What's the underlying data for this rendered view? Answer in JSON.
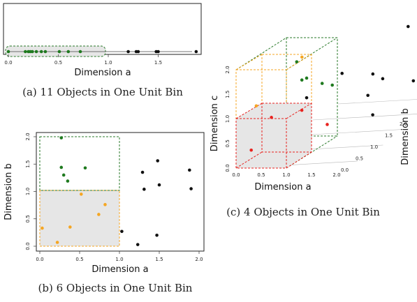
{
  "colors": {
    "black": "#111111",
    "green": "#1f7a1f",
    "orange": "#f5a623",
    "red": "#e8231f",
    "bin_fill": "#e6e6e6"
  },
  "chart_data": [
    {
      "id": "a",
      "type": "scatter",
      "caption": "(a) 11 Objects in One Unit Bin",
      "xlabel": "Dimension a",
      "ylabel": "",
      "xlim": [
        0,
        2
      ],
      "xticks": [
        "0.0",
        "0.5",
        "1.0",
        "1.5"
      ],
      "grid": false,
      "series": [
        {
          "color": "green",
          "x": [
            0.0,
            0.17,
            0.2,
            0.22,
            0.24,
            0.28,
            0.33,
            0.37,
            0.51,
            0.6,
            0.72
          ]
        },
        {
          "color": "black",
          "x": [
            1.2,
            1.28,
            1.3,
            1.48,
            1.5,
            1.88
          ]
        }
      ]
    },
    {
      "id": "b",
      "type": "scatter",
      "caption": "(b) 6 Objects in One Unit Bin",
      "xlabel": "Dimension a",
      "ylabel": "Dimension b",
      "xlim": [
        0,
        2
      ],
      "ylim": [
        0,
        2
      ],
      "xticks": [
        "0.0",
        "0.5",
        "1.0",
        "1.5",
        "2.0"
      ],
      "yticks": [
        "0.0",
        "0.5",
        "1.0",
        "1.5",
        "2.0"
      ],
      "grid": false,
      "series": [
        {
          "color": "orange",
          "points": [
            [
              0.03,
              0.33
            ],
            [
              0.22,
              0.07
            ],
            [
              0.38,
              0.35
            ],
            [
              0.52,
              0.95
            ],
            [
              0.74,
              0.58
            ],
            [
              0.82,
              0.76
            ]
          ]
        },
        {
          "color": "green",
          "points": [
            [
              0.27,
              1.98
            ],
            [
              0.27,
              1.44
            ],
            [
              0.3,
              1.3
            ],
            [
              0.35,
              1.19
            ],
            [
              0.57,
              1.43
            ]
          ]
        },
        {
          "color": "black",
          "points": [
            [
              1.03,
              0.27
            ],
            [
              1.23,
              0.03
            ],
            [
              1.29,
              1.35
            ],
            [
              1.31,
              1.04
            ],
            [
              1.47,
              0.2
            ],
            [
              1.48,
              1.56
            ],
            [
              1.5,
              1.12
            ],
            [
              1.88,
              1.39
            ],
            [
              1.9,
              1.05
            ]
          ]
        }
      ]
    },
    {
      "id": "c",
      "type": "scatter",
      "caption": "(c) 4 Objects in One Unit Bin",
      "xlabel": "Dimension a",
      "ylabel": "Dimension c",
      "zlabel": "Dimension b",
      "xlim": [
        0,
        2
      ],
      "ylim": [
        0,
        2
      ],
      "zlim": [
        0,
        2
      ],
      "xticks": [
        "0.0",
        "0.5",
        "1.0",
        "1.5",
        "2.0"
      ],
      "yticks": [
        "0.0",
        "0.5",
        "1.0",
        "1.5",
        "2.0"
      ],
      "zticks": [
        "0.0",
        "0.5",
        "1.0",
        "1.5",
        "2.0"
      ],
      "grid": true,
      "series": [
        {
          "color": "red",
          "points": [
            [
              0.2,
              0.3,
              0.1
            ],
            [
              0.5,
              0.9,
              0.2
            ],
            [
              0.8,
              0.85,
              0.5
            ],
            [
              0.9,
              0.3,
              0.9
            ]
          ]
        },
        {
          "color": "orange",
          "points": [
            [
              0.3,
              1.2,
              0.1
            ],
            [
              0.6,
              1.8,
              0.7
            ]
          ]
        },
        {
          "color": "green",
          "points": [
            [
              0.7,
              1.4,
              0.6
            ],
            [
              0.8,
              1.9,
              0.4
            ],
            [
              0.9,
              1.2,
              0.8
            ],
            [
              1.0,
              1.1,
              0.9
            ],
            [
              1.2,
              1.7,
              0.2
            ]
          ]
        },
        {
          "color": "black",
          "points": [
            [
              1.1,
              0.5,
              1.5
            ],
            [
              1.5,
              0.3,
              1.2
            ],
            [
              1.7,
              0.6,
              1.8
            ],
            [
              1.6,
              1.6,
              0.5
            ],
            [
              1.8,
              1.1,
              1.1
            ],
            [
              1.2,
              1.3,
              0.2
            ],
            [
              1.3,
              1.0,
              1.4
            ],
            [
              1.9,
              1.9,
              1.5
            ]
          ]
        }
      ]
    }
  ]
}
